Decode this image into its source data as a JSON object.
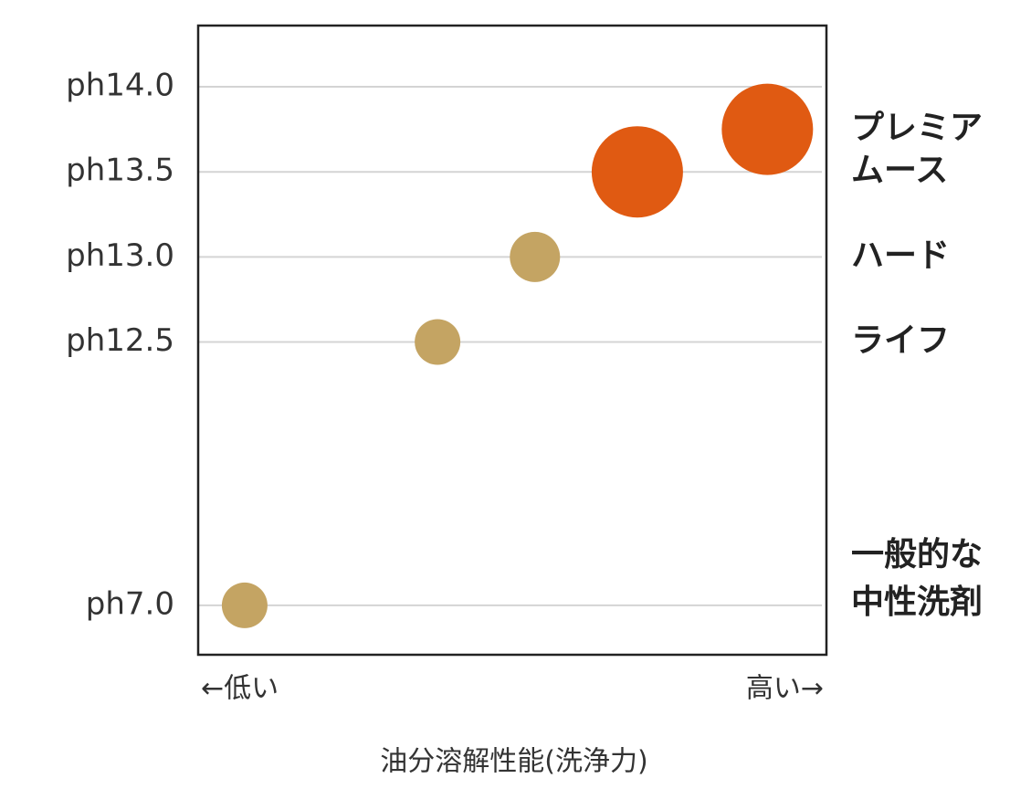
{
  "chart_data": {
    "type": "scatter",
    "xlabel": "油分溶解性能(洗浄力)",
    "annotations": [
      "←低い",
      "高い→"
    ],
    "x": [
      7.4,
      38.1,
      53.6,
      69.9,
      90.6
    ],
    "values": [
      7.0,
      12.5,
      13.0,
      13.5,
      13.75
    ],
    "sizes": [
      1,
      1,
      1.1,
      2,
      2
    ],
    "colors": [
      "#c4a463",
      "#c4a463",
      "#c4a463",
      "#e05a12",
      "#e05a12"
    ],
    "labels": [
      [
        "一般的な",
        "中性洗剤"
      ],
      [
        "ライフ"
      ],
      [
        "ハード"
      ],
      [
        "ムース"
      ],
      [
        "プレミア"
      ]
    ],
    "xlim": [
      0,
      100
    ],
    "ylim": [
      6,
      14.36
    ],
    "yticks": [
      {
        "value": 7.0,
        "label": "ph7.0"
      },
      {
        "value": 12.5,
        "label": "ph12.5"
      },
      {
        "value": 13.0,
        "label": "ph13.0"
      },
      {
        "value": 13.5,
        "label": "ph13.5"
      },
      {
        "value": 14.0,
        "label": "ph14.0"
      }
    ],
    "grid": true
  }
}
